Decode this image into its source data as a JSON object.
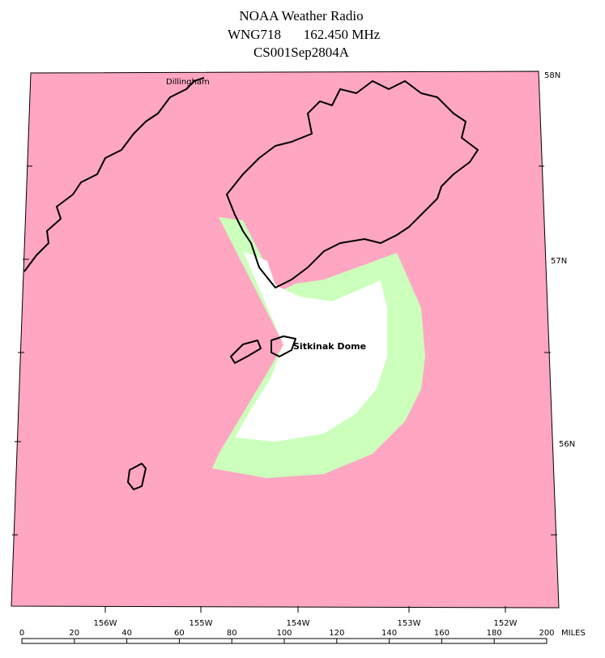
{
  "header": {
    "title": "NOAA Weather Radio",
    "station": "WNG718",
    "frequency": "162.450 MHz",
    "code": "CS001Sep2804A"
  },
  "places": [
    {
      "label": "Dillingham"
    },
    {
      "label": "Sitkinak Dome"
    }
  ],
  "latitudes": [
    "58N",
    "57N",
    "56N"
  ],
  "longitudes": [
    "156W",
    "155W",
    "154W",
    "153W",
    "152W"
  ],
  "scale": {
    "labels": [
      0,
      20,
      40,
      60,
      80,
      100,
      120,
      140,
      160,
      180,
      200
    ],
    "unit": "MILES"
  }
}
